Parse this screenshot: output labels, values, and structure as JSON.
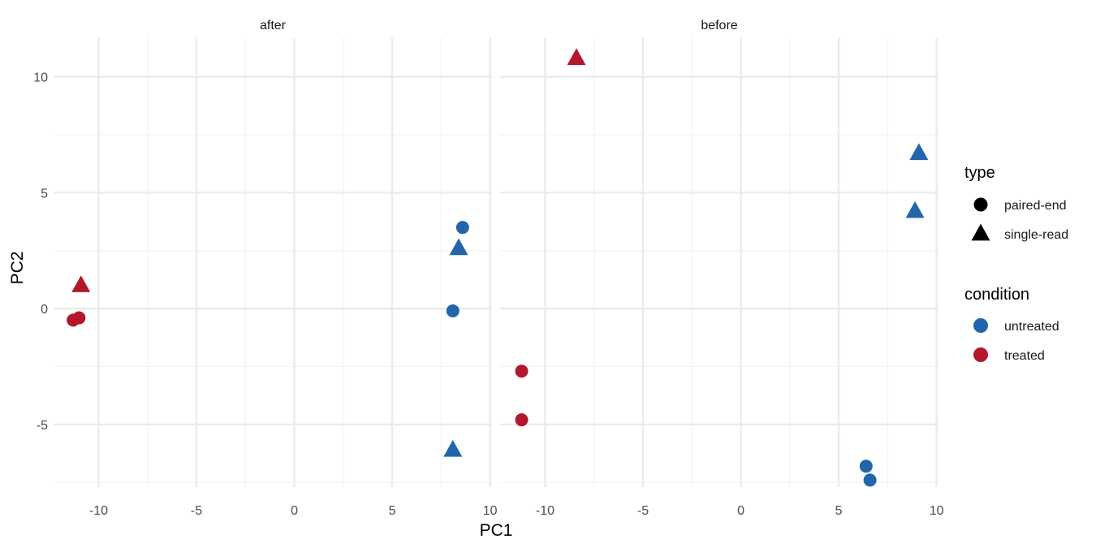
{
  "chart_data": {
    "type": "scatter",
    "xlabel": "PC1",
    "ylabel": "PC2",
    "xlim": [
      -12.3,
      10.1
    ],
    "ylim": [
      -7.7,
      11.7
    ],
    "x_ticks": [
      -10,
      -5,
      0,
      5,
      10
    ],
    "y_ticks": [
      -5,
      0,
      5,
      10
    ],
    "grid": true,
    "facets": [
      {
        "label": "after",
        "points": [
          {
            "x": 8.6,
            "y": 3.5,
            "type": "paired-end",
            "condition": "untreated"
          },
          {
            "x": 8.4,
            "y": 2.6,
            "type": "single-read",
            "condition": "untreated"
          },
          {
            "x": 8.1,
            "y": -0.1,
            "type": "paired-end",
            "condition": "untreated"
          },
          {
            "x": 8.1,
            "y": -6.1,
            "type": "single-read",
            "condition": "untreated"
          },
          {
            "x": -10.9,
            "y": 1.0,
            "type": "single-read",
            "condition": "treated"
          },
          {
            "x": -11.3,
            "y": -0.5,
            "type": "paired-end",
            "condition": "treated"
          },
          {
            "x": -11.0,
            "y": -0.4,
            "type": "paired-end",
            "condition": "treated"
          }
        ]
      },
      {
        "label": "before",
        "points": [
          {
            "x": -8.4,
            "y": 10.8,
            "type": "single-read",
            "condition": "treated"
          },
          {
            "x": 9.1,
            "y": 6.7,
            "type": "single-read",
            "condition": "untreated"
          },
          {
            "x": 8.9,
            "y": 4.2,
            "type": "single-read",
            "condition": "untreated"
          },
          {
            "x": -11.2,
            "y": -2.7,
            "type": "paired-end",
            "condition": "treated"
          },
          {
            "x": -11.2,
            "y": -4.8,
            "type": "paired-end",
            "condition": "treated"
          },
          {
            "x": 6.4,
            "y": -6.8,
            "type": "paired-end",
            "condition": "untreated"
          },
          {
            "x": 6.6,
            "y": -7.4,
            "type": "paired-end",
            "condition": "untreated"
          }
        ]
      }
    ],
    "legend": {
      "placement": "right",
      "type": {
        "title": "type",
        "entries": [
          {
            "label": "paired-end",
            "shape": "circle"
          },
          {
            "label": "single-read",
            "shape": "triangle"
          }
        ]
      },
      "condition": {
        "title": "condition",
        "entries": [
          {
            "label": "untreated",
            "color": "#2166ac"
          },
          {
            "label": "treated",
            "color": "#b2182b"
          }
        ]
      }
    },
    "colors": {
      "untreated": "#2166ac",
      "treated": "#b2182b",
      "grid_major": "#ebebeb",
      "grid_minor": "#f3f3f3",
      "text": "#4d4d4d"
    }
  }
}
